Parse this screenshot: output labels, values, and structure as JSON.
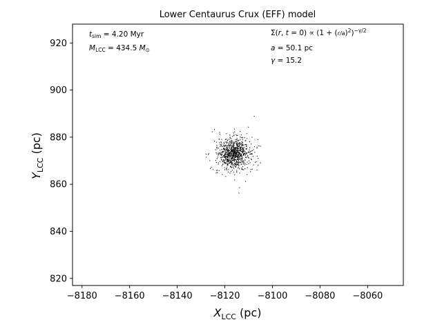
{
  "chart_data": {
    "type": "scatter",
    "title": "Lower Centaurus Crux (EFF) model",
    "xlabel": "X_LCC (pc)",
    "ylabel": "Y_LCC (pc)",
    "xlim": [
      -8184,
      -8045
    ],
    "ylim": [
      817,
      928
    ],
    "x_ticks": [
      -8180,
      -8160,
      -8140,
      -8120,
      -8100,
      -8080,
      -8060
    ],
    "y_ticks": [
      820,
      840,
      860,
      880,
      900,
      920
    ],
    "x_tick_labels": [
      "−8180",
      "−8160",
      "−8140",
      "−8120",
      "−8100",
      "−8080",
      "−8060"
    ],
    "y_tick_labels": [
      "820",
      "840",
      "860",
      "880",
      "900",
      "920"
    ],
    "grid": false,
    "marker_color": "#000000",
    "model": {
      "center": [
        -8116,
        873
      ],
      "a": 50.1,
      "gamma": 15.2,
      "n_points": 900
    },
    "annotations": {
      "t_sim": "t_sim = 4.20 Myr",
      "m_lcc": "M_LCC = 434.5 M⊙",
      "density": "Σ(r, t = 0) ∝ (1 + (r/a)²)^(−γ/2)",
      "a": "a = 50.1 pc",
      "gamma": "γ = 15.2"
    }
  }
}
